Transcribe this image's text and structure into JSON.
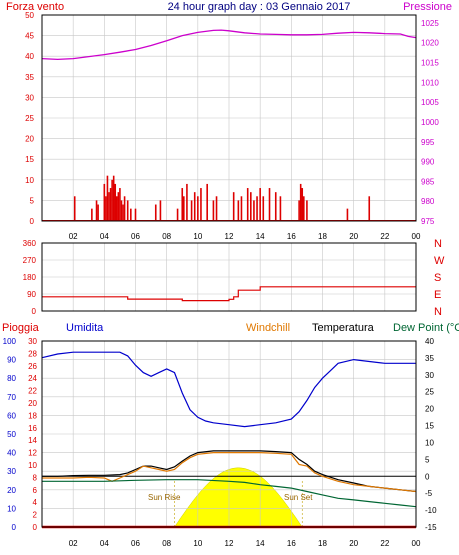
{
  "colors": {
    "wind": "#dd0000",
    "pressure": "#cc00cc",
    "direction": "#dd0000",
    "rain": "#dd0000",
    "humidity": "#0000cc",
    "windchill": "#e07800",
    "temperature": "#000000",
    "dewpoint": "#006633",
    "sun": "#ffff00",
    "title": "#000080",
    "frame": "#000000",
    "grid": "#c8c8c8"
  },
  "chart_data": [
    {
      "id": "wind-pressure",
      "type": "line",
      "title": "24 hour graph day : 03 Gennaio 2017",
      "left_label": "Forza vento",
      "right_label": "Pressione",
      "x_ticks": [
        "02",
        "04",
        "06",
        "08",
        "10",
        "12",
        "14",
        "16",
        "18",
        "20",
        "22",
        "00"
      ],
      "left_ticks": [
        "0",
        "5",
        "10",
        "15",
        "20",
        "25",
        "30",
        "35",
        "40",
        "45",
        "50"
      ],
      "right_ticks": [
        "975",
        "980",
        "985",
        "990",
        "995",
        "1000",
        "1005",
        "1010",
        "1015",
        "1020",
        "1025"
      ],
      "ylim_left": [
        0,
        50
      ],
      "ylim_right": [
        975,
        1027
      ],
      "grid": true,
      "series": [
        {
          "name": "Pressione",
          "axis": "right",
          "x": [
            0.0,
            1.0,
            2.0,
            3.0,
            4.0,
            5.0,
            6.0,
            7.0,
            8.0,
            9.0,
            10.0,
            11.0,
            11.5,
            12.0,
            13.0,
            14.0,
            15.0,
            16.0,
            17.0,
            18.0,
            19.0,
            20.0,
            21.0,
            22.0,
            23.0,
            23.5,
            24.0
          ],
          "y": [
            1016.0,
            1015.8,
            1016.0,
            1016.5,
            1017.0,
            1017.6,
            1018.3,
            1019.3,
            1020.5,
            1021.8,
            1022.6,
            1023.1,
            1023.2,
            1023.0,
            1022.5,
            1022.2,
            1022.1,
            1022.0,
            1022.0,
            1022.1,
            1022.4,
            1022.6,
            1022.5,
            1022.3,
            1022.2,
            1021.6,
            1021.3
          ]
        },
        {
          "name": "Forza vento",
          "axis": "left",
          "style": "bars",
          "x": [
            2.1,
            3.2,
            3.5,
            3.6,
            4.0,
            4.1,
            4.2,
            4.3,
            4.4,
            4.5,
            4.6,
            4.7,
            4.8,
            4.9,
            5.0,
            5.1,
            5.2,
            5.3,
            5.5,
            5.7,
            6.0,
            7.3,
            7.6,
            8.7,
            9.0,
            9.1,
            9.3,
            9.6,
            9.8,
            10.0,
            10.2,
            10.6,
            11.0,
            11.2,
            12.3,
            12.6,
            12.8,
            13.2,
            13.4,
            13.6,
            13.8,
            14.0,
            14.2,
            14.6,
            15.0,
            15.3,
            16.5,
            16.6,
            16.7,
            16.8,
            17.0,
            19.6,
            21.0
          ],
          "y": [
            6,
            3,
            5,
            4,
            9,
            6,
            11,
            7,
            8,
            10,
            11,
            9,
            6,
            7,
            8,
            5,
            4,
            6,
            5,
            3,
            3,
            4,
            5,
            3,
            8,
            6,
            9,
            5,
            7,
            6,
            8,
            9,
            5,
            6,
            7,
            5,
            6,
            8,
            7,
            5,
            6,
            8,
            6,
            8,
            7,
            6,
            5,
            9,
            8,
            6,
            5,
            3,
            6
          ]
        }
      ]
    },
    {
      "id": "direction",
      "type": "line",
      "right_ticks": [
        "N",
        "W",
        "S",
        "E",
        "N"
      ],
      "left_ticks": [
        "0",
        "90",
        "180",
        "270",
        "360"
      ],
      "ylim": [
        0,
        360
      ],
      "grid": true,
      "series": [
        {
          "name": "Direzione",
          "step": true,
          "x": [
            0.0,
            5.0,
            5.5,
            8.0,
            9.0,
            12.0,
            12.3,
            12.6,
            14.0,
            24.0
          ],
          "y": [
            75,
            75,
            63,
            63,
            55,
            62,
            75,
            110,
            128,
            128
          ]
        }
      ]
    },
    {
      "id": "temperature",
      "type": "line",
      "legend": [
        "Pioggia",
        "Umidita",
        "Windchill",
        "Temperatura",
        "Dew Point (°C"
      ],
      "left1_ticks": [
        "0",
        "10",
        "20",
        "30",
        "40",
        "50",
        "60",
        "70",
        "80",
        "90",
        "100"
      ],
      "left2_ticks": [
        "0",
        "2",
        "4",
        "6",
        "8",
        "10",
        "12",
        "14",
        "16",
        "18",
        "20",
        "22",
        "24",
        "26",
        "28",
        "30"
      ],
      "right_ticks": [
        "-15",
        "-10",
        "-5",
        "0",
        "5",
        "10",
        "15",
        "20",
        "25",
        "30",
        "35",
        "40"
      ],
      "x_ticks": [
        "02",
        "04",
        "06",
        "08",
        "10",
        "12",
        "14",
        "16",
        "18",
        "20",
        "22",
        "00"
      ],
      "annotations": [
        "Sun Rise",
        "Sun Set"
      ],
      "sunrise_label": "Sun Rise",
      "sunset_label": "Sun Set",
      "ylim_humidity": [
        0,
        100
      ],
      "ylim_rain": [
        0,
        30
      ],
      "ylim_temp": [
        -15,
        40
      ],
      "grid": true,
      "sun": {
        "rise": 8.5,
        "set": 16.7
      },
      "series": [
        {
          "name": "Umidita",
          "axis": "humidity",
          "x": [
            0.0,
            1.0,
            2.0,
            3.0,
            4.0,
            5.0,
            5.5,
            6.0,
            6.5,
            7.0,
            7.5,
            8.0,
            8.5,
            9.0,
            9.5,
            10.0,
            10.5,
            11.0,
            12.0,
            13.0,
            14.0,
            15.0,
            16.0,
            16.5,
            17.0,
            17.5,
            18.0,
            18.5,
            19.0,
            20.0,
            21.0,
            22.0,
            23.0,
            24.0
          ],
          "y": [
            91,
            93,
            94,
            94,
            94,
            94,
            92,
            87,
            83,
            81,
            83,
            85,
            83,
            72,
            63,
            59,
            57,
            56,
            55,
            54,
            55,
            56,
            58,
            62,
            68,
            75,
            80,
            84,
            88,
            90,
            89,
            88,
            88,
            88
          ]
        },
        {
          "name": "Temperatura",
          "axis": "temp",
          "x": [
            0.0,
            1.0,
            2.0,
            3.0,
            4.0,
            5.0,
            5.5,
            6.0,
            6.5,
            7.0,
            7.5,
            8.0,
            8.5,
            9.0,
            9.5,
            10.0,
            11.0,
            12.0,
            13.0,
            14.0,
            15.0,
            16.0,
            16.5,
            17.0,
            17.5,
            18.0,
            19.0,
            20.0,
            21.0,
            22.0,
            23.0,
            24.0
          ],
          "y": [
            0.0,
            0.0,
            0.2,
            0.3,
            0.3,
            0.5,
            1.0,
            2.0,
            3.0,
            3.0,
            2.5,
            2.0,
            2.8,
            4.5,
            6.0,
            7.0,
            7.5,
            7.5,
            7.5,
            7.5,
            7.3,
            7.0,
            5.0,
            3.5,
            1.5,
            0.5,
            -1.0,
            -2.0,
            -3.0,
            -3.5,
            -4.0,
            -4.5
          ]
        },
        {
          "name": "Windchill",
          "axis": "temp",
          "x": [
            0.0,
            1.0,
            2.0,
            3.0,
            4.0,
            4.5,
            5.0,
            5.5,
            6.0,
            6.5,
            7.0,
            7.5,
            8.0,
            8.5,
            9.0,
            9.5,
            10.0,
            11.0,
            12.0,
            13.0,
            14.0,
            15.0,
            16.0,
            16.5,
            17.0,
            17.5,
            18.0,
            19.0,
            20.0,
            21.0,
            22.0,
            23.0,
            24.0
          ],
          "y": [
            -0.5,
            -0.5,
            -0.5,
            -0.3,
            -0.5,
            -1.5,
            -0.5,
            0.5,
            1.5,
            3.0,
            2.5,
            2.0,
            1.5,
            2.0,
            4.0,
            5.5,
            6.5,
            7.0,
            7.0,
            7.0,
            7.0,
            6.8,
            6.5,
            3.5,
            3.0,
            1.0,
            0.0,
            -1.5,
            -2.5,
            -3.0,
            -3.5,
            -4.0,
            -4.5
          ]
        },
        {
          "name": "Dew Point",
          "axis": "temp",
          "x": [
            0.0,
            2.0,
            4.0,
            6.0,
            8.0,
            10.0,
            12.0,
            13.0,
            14.0,
            15.0,
            16.0,
            17.0,
            18.0,
            19.0,
            20.0,
            21.0,
            22.0,
            23.0,
            24.0
          ],
          "y": [
            -1.5,
            -1.5,
            -1.5,
            -1.2,
            -1.0,
            -1.0,
            -1.5,
            -1.8,
            -2.5,
            -3.0,
            -3.5,
            -4.5,
            -5.5,
            -6.5,
            -7.0,
            -7.5,
            -8.0,
            -8.5,
            -9.0
          ]
        },
        {
          "name": "Pioggia",
          "axis": "rain",
          "x": [
            0.0,
            24.0
          ],
          "y": [
            0,
            0
          ]
        }
      ]
    }
  ]
}
